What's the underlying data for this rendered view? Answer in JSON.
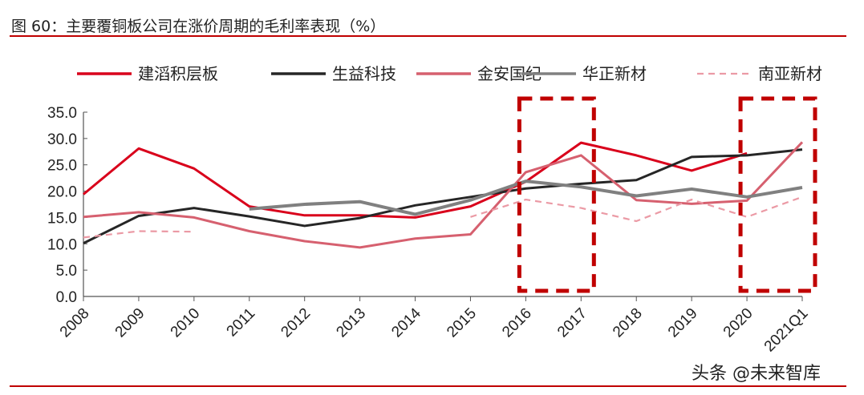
{
  "title": "图 60：主要覆铜板公司在涨价周期的毛利率表现（%）",
  "watermark": "头条 @未来智库",
  "chart_data": {
    "type": "line",
    "title": "图 60：主要覆铜板公司在涨价周期的毛利率表现（%）",
    "categories": [
      "2008",
      "2009",
      "2010",
      "2011",
      "2012",
      "2013",
      "2014",
      "2015",
      "2016",
      "2017",
      "2018",
      "2019",
      "2020",
      "2021Q1"
    ],
    "ylim": [
      0,
      35
    ],
    "yticks": [
      "0.0",
      "5.0",
      "10.0",
      "15.0",
      "20.0",
      "25.0",
      "30.0",
      "35.0"
    ],
    "grid": false,
    "legend": "top",
    "highlight_ranges": [
      [
        "2016",
        "2017"
      ],
      [
        "2020",
        "2021Q1"
      ]
    ],
    "highlight_color": "#c00000",
    "series": [
      {
        "name": "建滔积层板",
        "color": "#d9001b",
        "dash": false,
        "values": [
          19.4,
          28.1,
          24.3,
          17.1,
          15.4,
          15.4,
          15.0,
          17.1,
          21.8,
          29.2,
          26.8,
          23.9,
          27.2,
          null
        ]
      },
      {
        "name": "生益科技",
        "color": "#262626",
        "dash": false,
        "values": [
          10.1,
          15.3,
          16.8,
          15.2,
          13.4,
          14.9,
          17.3,
          18.9,
          20.5,
          21.4,
          22.1,
          26.5,
          26.8,
          27.9
        ]
      },
      {
        "name": "金安国纪",
        "color": "#d6606f",
        "dash": false,
        "values": [
          15.1,
          16.0,
          15.0,
          12.4,
          10.5,
          9.3,
          11.0,
          11.8,
          23.6,
          26.8,
          18.3,
          17.6,
          18.2,
          29.3
        ]
      },
      {
        "name": "华正新材",
        "color": "#808080",
        "dash": false,
        "values": [
          null,
          null,
          null,
          16.6,
          17.5,
          18.0,
          15.6,
          18.3,
          21.9,
          20.8,
          19.1,
          20.4,
          18.9,
          20.7
        ]
      },
      {
        "name": "南亚新材",
        "color": "#eb9aa5",
        "dash": true,
        "values": [
          11.2,
          12.4,
          12.3,
          null,
          null,
          null,
          null,
          15.1,
          18.4,
          16.8,
          14.3,
          18.4,
          15.1,
          18.9
        ]
      }
    ]
  }
}
